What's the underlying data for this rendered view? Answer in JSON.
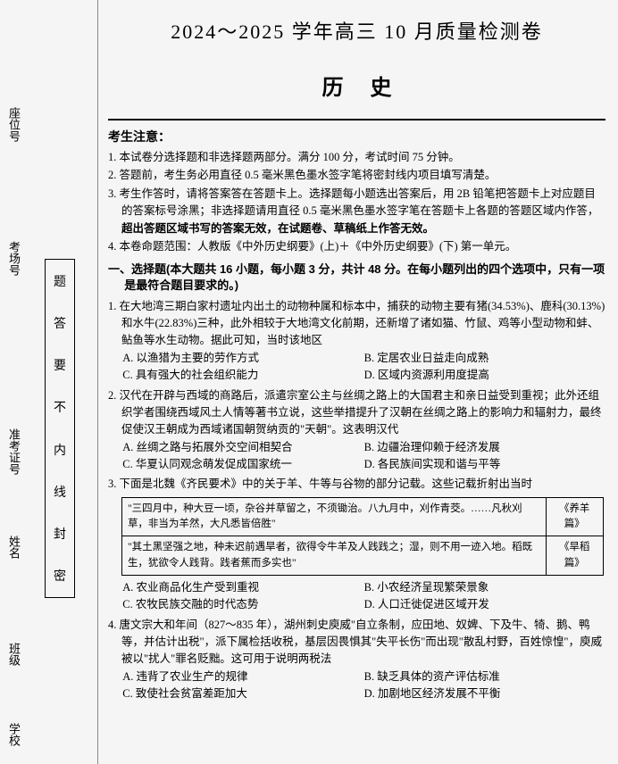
{
  "leftMargin": {
    "labels": {
      "seat": "座位号",
      "room": "考场号",
      "exam": "准考证号",
      "name": "姓名",
      "class": "班级",
      "school": "学校"
    },
    "sealBox": [
      "题",
      "答",
      "要",
      "不",
      "内",
      "线",
      "封",
      "密"
    ]
  },
  "header": {
    "mainTitle": "2024～2025 学年高三 10 月质量检测卷",
    "subject": "历史"
  },
  "notice": {
    "heading": "考生注意：",
    "items": [
      "1. 本试卷分选择题和非选择题两部分。满分 100 分，考试时间 75 分钟。",
      "2. 答题前，考生务必用直径 0.5 毫米黑色墨水签字笔将密封线内项目填写清楚。",
      "3. 考生作答时，请将答案答在答题卡上。选择题每小题选出答案后，用 2B 铅笔把答题卡上对应题目的答案标号涂黑；非选择题请用直径 0.5 毫米黑色墨水签字笔在答题卡上各题的答题区域内作答，",
      "4. 本卷命题范围：人教版《中外历史纲要》(上)＋《中外历史纲要》(下) 第一单元。"
    ],
    "boldInline": "超出答题区域书写的答案无效，在试题卷、草稿纸上作答无效。"
  },
  "sectionTitle": "一、选择题(本大题共 16 小题，每小题 3 分，共计 48 分。在每小题列出的四个选项中，只有一项是最符合题目要求的。)",
  "questions": [
    {
      "num": "1.",
      "stem": "在大地湾三期白家村遗址内出土的动物种属和标本中，捕获的动物主要有猪(34.53%)、鹿科(30.13%)和水牛(22.83%)三种，此外相较于大地湾文化前期，还新增了诸如猫、竹鼠、鸡等小型动物和蚌、鲇鱼等水生动物。据此可知，当时该地区",
      "opts": [
        "A. 以渔猎为主要的劳作方式",
        "B. 定居农业日益走向成熟",
        "C. 具有强大的社会组织能力",
        "D. 区域内资源利用度提高"
      ]
    },
    {
      "num": "2.",
      "stem": "汉代在开辟与西域的商路后，派遣宗室公主与丝绸之路上的大国君主和亲日益受到重视；此外还组织学者围绕西域风土人情等著书立说，这些举措提升了汉朝在丝绸之路上的影响力和辐射力，最终促使汉王朝成为西域诸国朝贺纳贡的\"天朝\"。这表明汉代",
      "opts": [
        "A. 丝绸之路与拓展外交空间相契合",
        "B. 边疆治理仰赖于经济发展",
        "C. 华夏认同观念萌发促成国家统一",
        "D. 各民族间实现和谐与平等"
      ]
    },
    {
      "num": "3.",
      "stem": "下面是北魏《齐民要术》中的关于羊、牛等与谷物的部分记载。这些记载折射出当时",
      "table": [
        {
          "text": "\"三四月中，种大豆一顷，杂谷并草留之，不须锄治。八九月中，刈作青茭。……凡秋刈草，非当为羊然，大凡悉皆倍胜\"",
          "src": "《养羊篇》"
        },
        {
          "text": "\"其土黑坚强之地，种未迟前遇旱者，欲得令牛羊及人践践之；湿，则不用一迹入地。稻既生，犹欲令人践背。践者蕉而多实也\"",
          "src": "《旱稻篇》"
        }
      ],
      "opts": [
        "A. 农业商品化生产受到重视",
        "B. 小农经济呈现繁荣景象",
        "C. 农牧民族交融的时代态势",
        "D. 人口迁徙促进区域开发"
      ]
    },
    {
      "num": "4.",
      "stem": "唐文宗大和年间（827～835 年），湖州刺史庾威\"自立条制，应田地、奴婢、下及牛、犄、鹅、鸭等，并估计出税\"，派下属检括收税，基层因畏惧其\"失平长伤\"而出现\"散乱村野，百姓惊惶\"，庾威被以\"扰人\"罪名贬黜。这可用于说明两税法",
      "opts": [
        "A. 违背了农业生产的规律",
        "B. 缺乏具体的资产评估标准",
        "C. 致使社会贫富差距加大",
        "D. 加剧地区经济发展不平衡"
      ]
    }
  ]
}
